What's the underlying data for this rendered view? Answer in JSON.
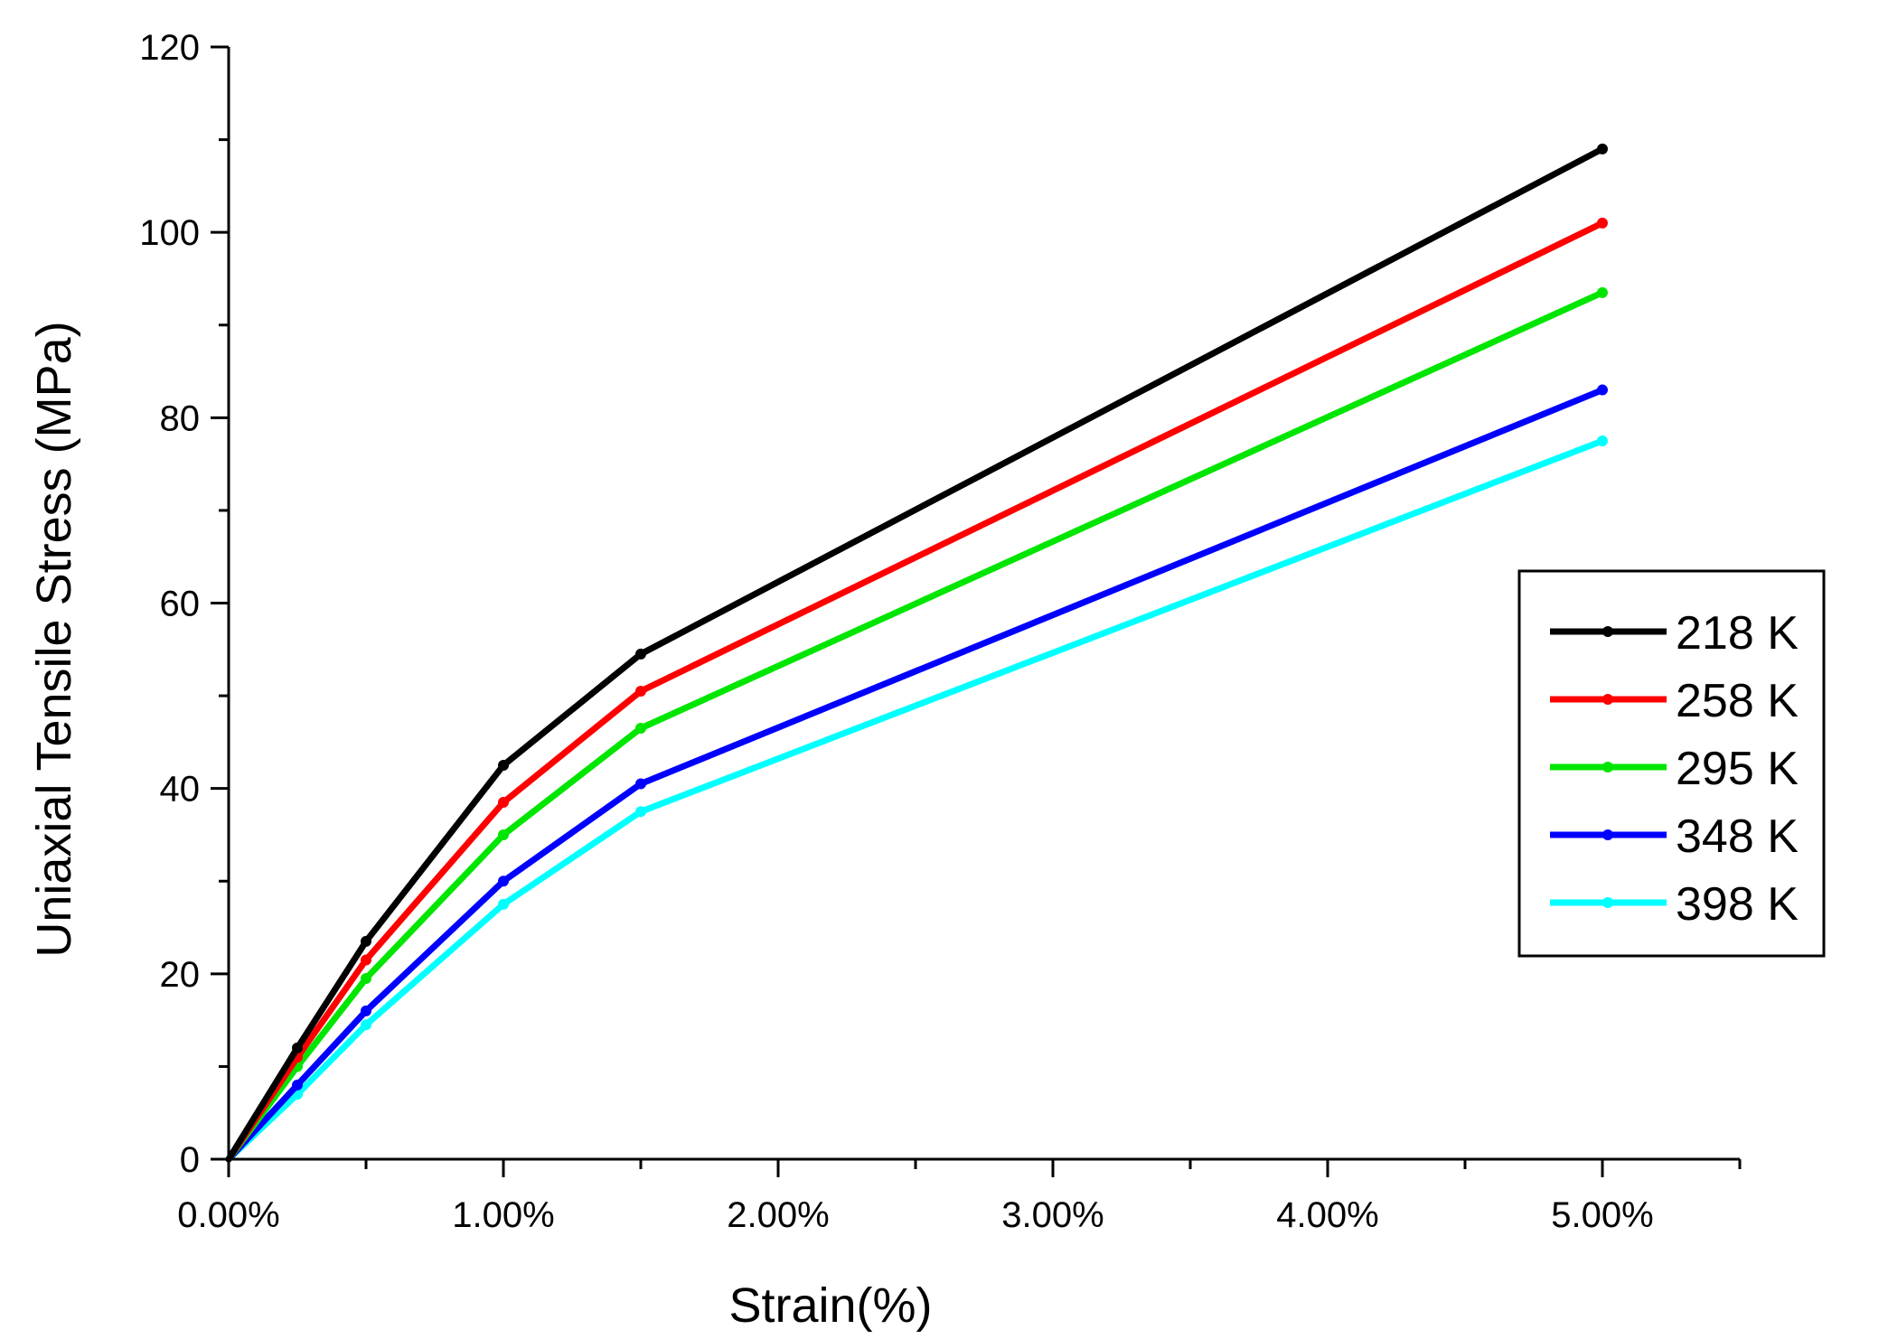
{
  "chart_data": {
    "type": "line",
    "title": "",
    "xlabel": "Strain(%)",
    "ylabel": "Uniaxial Tensile Stress (MPa)",
    "xlim": [
      0,
      5.5
    ],
    "ylim": [
      0,
      120
    ],
    "x_ticks": [
      0,
      1,
      2,
      3,
      4,
      5
    ],
    "x_tick_labels": [
      "0.00%",
      "1.00%",
      "2.00%",
      "3.00%",
      "4.00%",
      "5.00%"
    ],
    "y_ticks": [
      0,
      20,
      40,
      60,
      80,
      100,
      120
    ],
    "y_tick_labels": [
      "0",
      "20",
      "40",
      "60",
      "80",
      "100",
      "120"
    ],
    "grid": false,
    "legend_position": "right",
    "x": [
      0,
      0.25,
      0.5,
      1.0,
      1.5,
      5.0
    ],
    "series": [
      {
        "name": "218 K",
        "color": "#000000",
        "values": [
          0,
          12.0,
          23.5,
          42.5,
          54.5,
          109.0
        ]
      },
      {
        "name": "258 K",
        "color": "#ff0000",
        "values": [
          0,
          11.0,
          21.5,
          38.5,
          50.5,
          101.0
        ]
      },
      {
        "name": "295 K",
        "color": "#00e600",
        "values": [
          0,
          10.0,
          19.5,
          35.0,
          46.5,
          93.5
        ]
      },
      {
        "name": "348 K",
        "color": "#0000ff",
        "values": [
          0,
          8.0,
          16.0,
          30.0,
          40.5,
          83.0
        ]
      },
      {
        "name": "398 K",
        "color": "#00ffff",
        "values": [
          0,
          7.0,
          14.5,
          27.5,
          37.5,
          77.5
        ]
      }
    ]
  }
}
